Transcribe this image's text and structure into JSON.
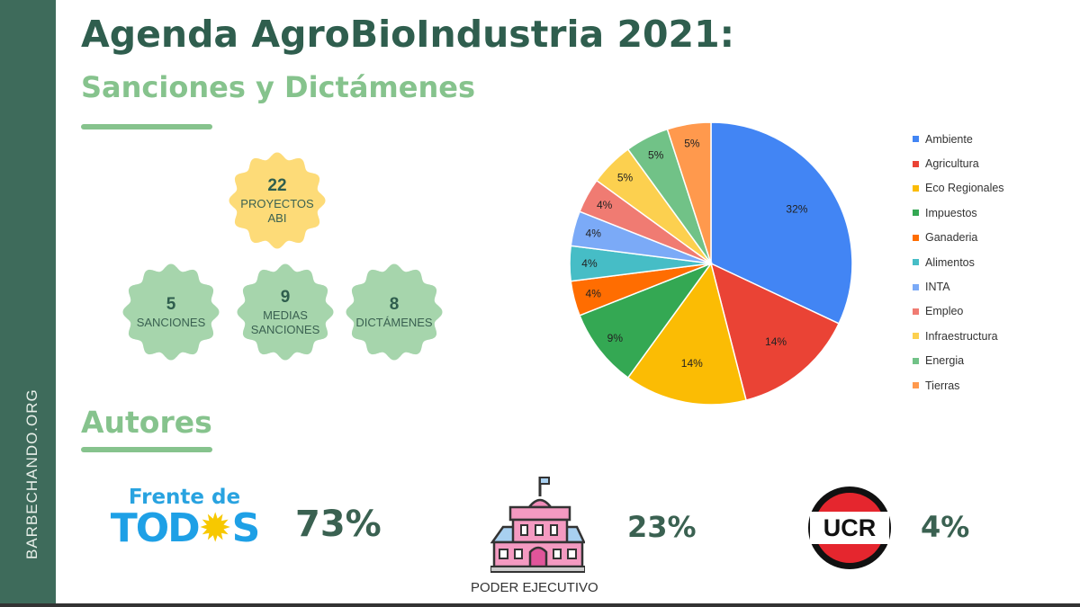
{
  "sidebar": {
    "text": "BARBECHANDO.ORG",
    "color": "#3e6b5b"
  },
  "header": {
    "title": "Agenda AgroBioIndustria 2021:",
    "subtitle": "Sanciones y Dictámenes"
  },
  "stats": {
    "total": {
      "number": "22",
      "label_line1": "PROYECTOS",
      "label_line2": "ABI",
      "color": "#fddb78"
    },
    "items": [
      {
        "number": "5",
        "label_line1": "SANCIONES",
        "label_line2": ""
      },
      {
        "number": "9",
        "label_line1": "MEDIAS",
        "label_line2": "SANCIONES"
      },
      {
        "number": "8",
        "label_line1": "DICTÁMENES",
        "label_line2": ""
      }
    ],
    "item_color": "#a6d5ac"
  },
  "autores": {
    "heading": "Autores",
    "items": [
      {
        "logo_text_line1": "Frente de",
        "logo_text_line2": "TOD",
        "logo_text_line3": "S",
        "percent": "73%"
      },
      {
        "label": "PODER EJECUTIVO",
        "icon": "government-building-icon",
        "percent": "23%"
      },
      {
        "logo_text": "UCR",
        "percent": "4%"
      }
    ]
  },
  "chart_data": {
    "type": "pie",
    "categories": [
      "Ambiente",
      "Agricultura",
      "Eco Regionales",
      "Impuestos",
      "Ganaderia",
      "Alimentos",
      "INTA",
      "Empleo",
      "Infraestructura",
      "Energia",
      "Tierras"
    ],
    "values": [
      32,
      14,
      14,
      9,
      4,
      4,
      4,
      4,
      5,
      5,
      5
    ],
    "labels": [
      "32%",
      "14%",
      "14%",
      "9%",
      "4%",
      "4%",
      "4%",
      "4%",
      "5%",
      "5%",
      "5%"
    ],
    "colors": [
      "#4285f4",
      "#ea4335",
      "#fbbc04",
      "#34a853",
      "#ff6d01",
      "#46bdc6",
      "#7baaf7",
      "#f07b72",
      "#fcd04f",
      "#71c287",
      "#ff994d"
    ],
    "legend": "right",
    "start": "top-clockwise"
  }
}
